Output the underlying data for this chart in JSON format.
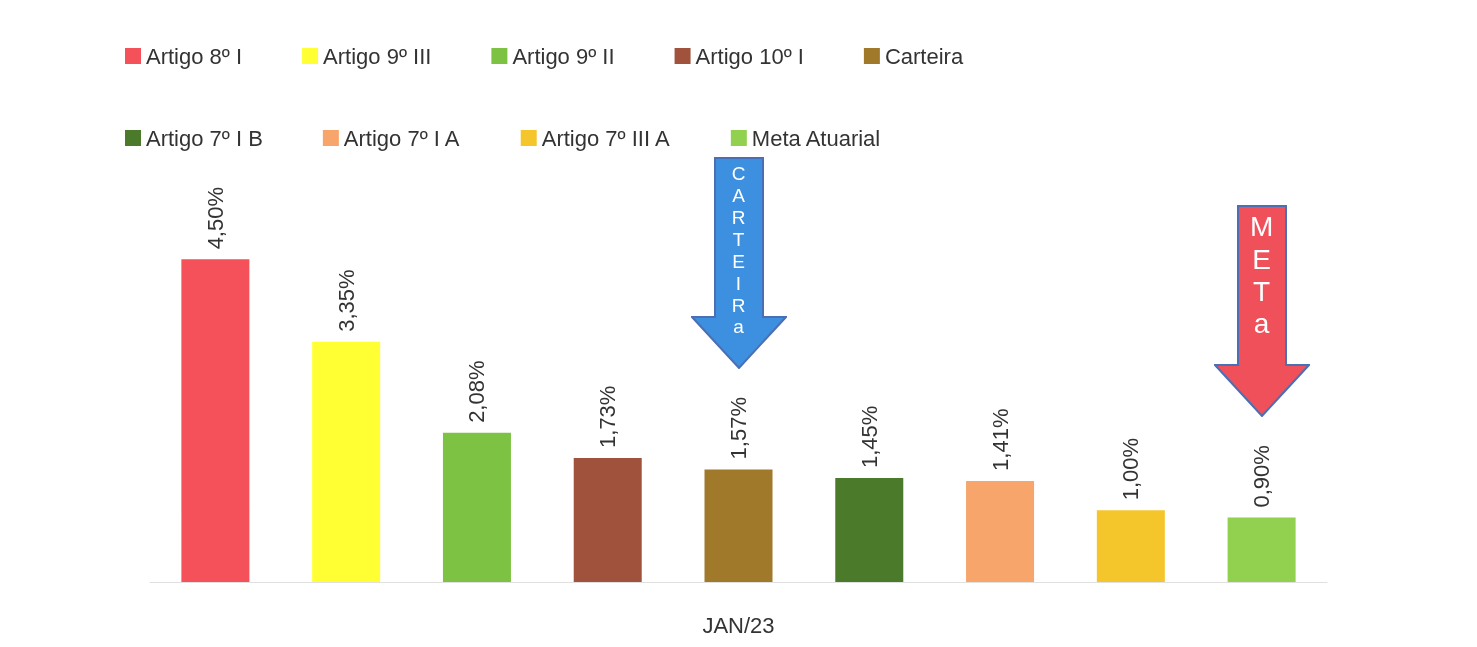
{
  "chart_data": {
    "type": "bar",
    "categories": [
      null,
      null,
      null,
      null,
      null,
      null,
      null,
      null,
      null
    ],
    "xlabel": "JAN/23",
    "legend": "top",
    "stacked": true,
    "series": [
      {
        "name": "Artigo 8º I",
        "color": "#f4515a",
        "values": [
          4.5,
          null,
          null,
          null,
          null,
          null,
          null,
          null,
          null
        ],
        "value_labels": [
          "4,50%",
          null,
          null,
          null,
          null,
          null,
          null,
          null,
          null
        ]
      },
      {
        "name": "Artigo 9º III",
        "color": "#ffff33",
        "values": [
          null,
          3.35,
          null,
          null,
          null,
          null,
          null,
          null,
          null
        ],
        "value_labels": [
          null,
          "3,35%",
          null,
          null,
          null,
          null,
          null,
          null,
          null
        ]
      },
      {
        "name": "Artigo 9º II",
        "color": "#7dc242",
        "values": [
          null,
          null,
          2.08,
          null,
          null,
          null,
          null,
          null,
          null
        ],
        "value_labels": [
          null,
          null,
          "2,08%",
          null,
          null,
          null,
          null,
          null,
          null
        ]
      },
      {
        "name": "Artigo 10º I",
        "color": "#a0523d",
        "values": [
          null,
          null,
          null,
          1.73,
          null,
          null,
          null,
          null,
          null
        ],
        "value_labels": [
          null,
          null,
          null,
          "1,73%",
          null,
          null,
          null,
          null,
          null
        ]
      },
      {
        "name": "Carteira",
        "color": "#a07a2a",
        "values": [
          null,
          null,
          null,
          null,
          1.57,
          null,
          null,
          null,
          null
        ],
        "value_labels": [
          null,
          null,
          null,
          null,
          "1,57%",
          null,
          null,
          null,
          null
        ]
      },
      {
        "name": "Artigo 7º I B",
        "color": "#4a7a2a",
        "values": [
          null,
          null,
          null,
          null,
          null,
          1.45,
          null,
          null,
          null
        ],
        "value_labels": [
          null,
          null,
          null,
          null,
          null,
          "1,45%",
          null,
          null,
          null
        ]
      },
      {
        "name": "Artigo 7º I A",
        "color": "#f7a56b",
        "values": [
          null,
          null,
          null,
          null,
          null,
          null,
          1.41,
          null,
          null
        ],
        "value_labels": [
          null,
          null,
          null,
          null,
          null,
          null,
          "1,41%",
          null,
          null
        ]
      },
      {
        "name": "Artigo 7º III A",
        "color": "#f5c62b",
        "values": [
          null,
          null,
          null,
          null,
          null,
          null,
          null,
          1.0,
          null
        ],
        "value_labels": [
          null,
          null,
          null,
          null,
          null,
          null,
          null,
          "1,00%",
          null
        ]
      },
      {
        "name": "Meta Atuarial",
        "color": "#92d050",
        "values": [
          null,
          null,
          null,
          null,
          null,
          null,
          null,
          null,
          0.9
        ],
        "value_labels": [
          null,
          null,
          null,
          null,
          null,
          null,
          null,
          null,
          "0,90%"
        ]
      }
    ],
    "annotations": [
      "CARTEIRa",
      "METa"
    ]
  }
}
